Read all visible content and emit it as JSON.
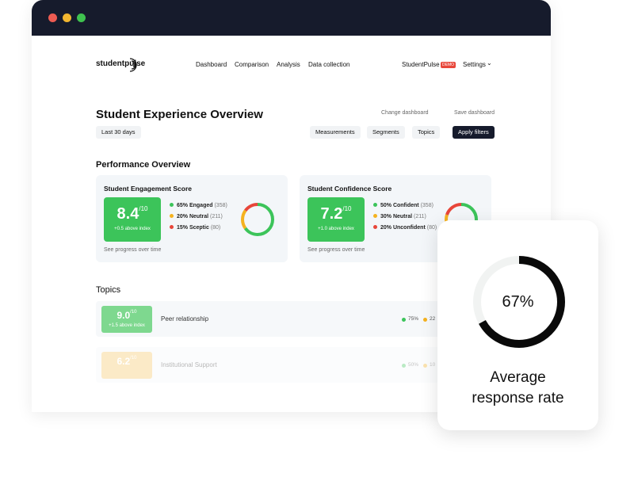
{
  "nav": {
    "logo": "studentpulse",
    "links": [
      "Dashboard",
      "Comparison",
      "Analysis",
      "Data collection"
    ],
    "account": "StudentPulse",
    "badge": "DEMO",
    "settings": "Settings"
  },
  "header": {
    "title": "Student Experience Overview",
    "change": "Change dashboard",
    "save": "Save dashboard"
  },
  "filters": {
    "period": "Last 30 days",
    "buttons": [
      "Measurements",
      "Segments",
      "Topics"
    ],
    "apply": "Apply filters"
  },
  "section": "Performance Overview",
  "scores": [
    {
      "title": "Student Engagement Score",
      "score": "8.4",
      "scale": "/10",
      "delta": "+0.5 above index",
      "link": "See progress over time",
      "segments": [
        {
          "label": "65% Engaged",
          "count": "(358)",
          "value": 65,
          "color": "#3cc45a"
        },
        {
          "label": "20% Neutral",
          "count": "(211)",
          "value": 20,
          "color": "#f5b21f"
        },
        {
          "label": "15% Sceptic",
          "count": "(80)",
          "value": 15,
          "color": "#e8463a"
        }
      ]
    },
    {
      "title": "Student Confidence Score",
      "score": "7.2",
      "scale": "/10",
      "delta": "+1.0 above index",
      "link": "See progress over time",
      "segments": [
        {
          "label": "50% Confident",
          "count": "(358)",
          "value": 50,
          "color": "#3cc45a"
        },
        {
          "label": "30% Neutral",
          "count": "(211)",
          "value": 30,
          "color": "#f5b21f"
        },
        {
          "label": "20% Unconfident",
          "count": "(80)",
          "value": 20,
          "color": "#e8463a"
        }
      ]
    }
  ],
  "topics": {
    "title": "Topics",
    "rows": [
      {
        "score": "9.0",
        "scale": "/10",
        "delta": "+1.5 above index",
        "name": "Peer relationship",
        "stats": [
          "75%",
          "22"
        ]
      },
      {
        "score": "6.2",
        "scale": "/10",
        "delta": "",
        "name": "Institutional Support",
        "stats": [
          "50%",
          "10"
        ]
      }
    ]
  },
  "response": {
    "value": 67,
    "label": "67%",
    "caption": [
      "Average",
      "response rate"
    ]
  }
}
